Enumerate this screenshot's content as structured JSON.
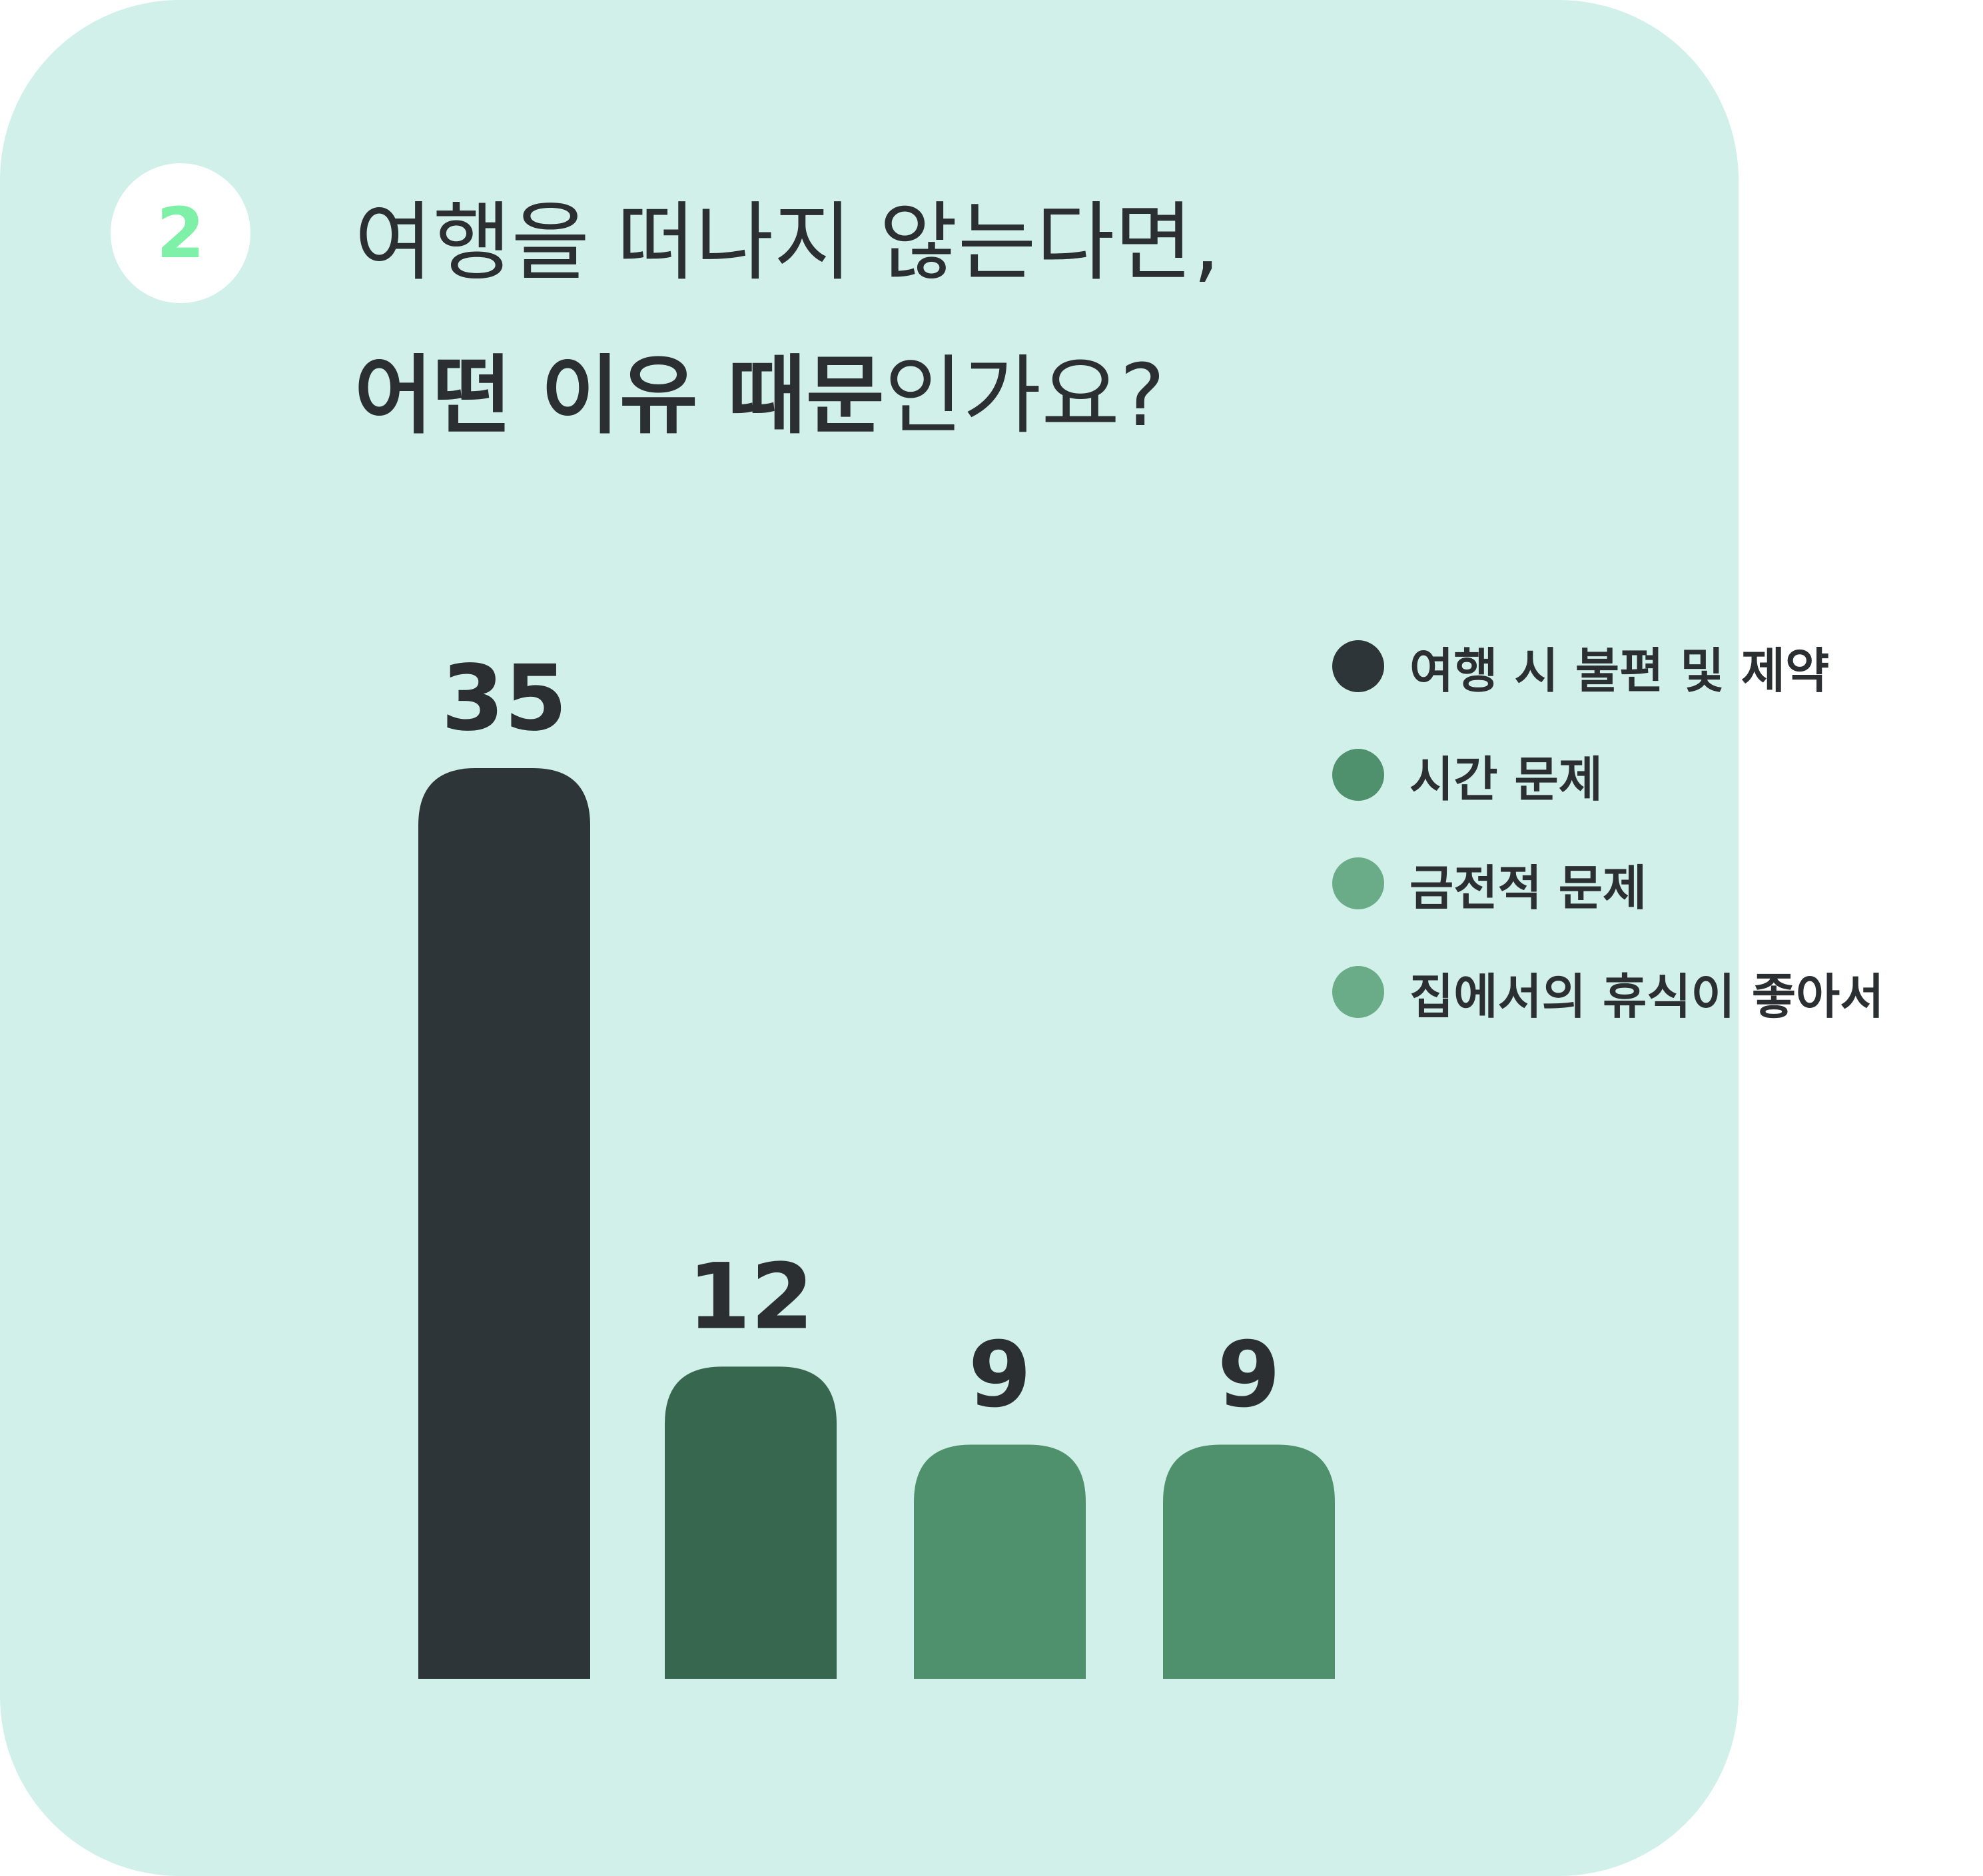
{
  "badge": {
    "number": "2"
  },
  "title": {
    "line1": "여행을 떠나지 않는다면,",
    "line2_bold": "어떤 이유 때문",
    "line2_light": "인가요?"
  },
  "chart_data": {
    "type": "bar",
    "categories": [
      "여행 시 불편 및 제약",
      "시간 문제",
      "금전적 문제",
      "집에서의 휴식이 좋아서"
    ],
    "values": [
      35,
      12,
      9,
      9
    ],
    "value_labels": [
      "35",
      "12",
      "9",
      "9"
    ],
    "ylim": [
      0,
      35
    ],
    "grid": false,
    "legend_position": "right",
    "bar_colors": [
      "#2d3538",
      "#37684f",
      "#4e916c",
      "#4e916c"
    ]
  },
  "legend": {
    "items": [
      {
        "label": "여행 시 불편 및 제약",
        "color": "#2d3538"
      },
      {
        "label": "시간 문제",
        "color": "#4e916c"
      },
      {
        "label": "금전적 문제",
        "color": "#69ac87"
      },
      {
        "label": "집에서의 휴식이 좋아서",
        "color": "#69ac87"
      }
    ]
  }
}
